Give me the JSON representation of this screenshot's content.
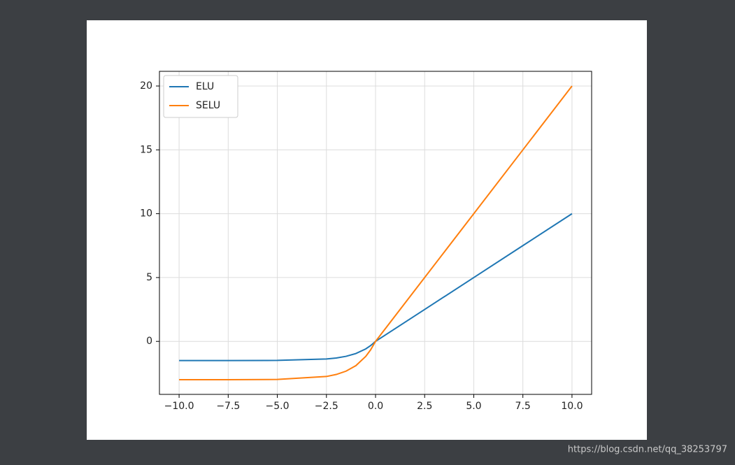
{
  "chart_data": {
    "type": "line",
    "x": [
      -10,
      -7.5,
      -5,
      -2.5,
      -2,
      -1.5,
      -1,
      -0.5,
      -0.25,
      0,
      2.5,
      5,
      7.5,
      10
    ],
    "series": [
      {
        "name": "ELU",
        "color": "#1f77b4",
        "values": [
          -1.5,
          -1.5,
          -1.49,
          -1.38,
          -1.3,
          -1.17,
          -0.95,
          -0.59,
          -0.33,
          0,
          2.5,
          5,
          7.5,
          10
        ]
      },
      {
        "name": "SELU",
        "color": "#ff7f0e",
        "values": [
          -3,
          -3,
          -2.98,
          -2.75,
          -2.59,
          -2.33,
          -1.9,
          -1.18,
          -0.66,
          0,
          5,
          10,
          15,
          20
        ]
      }
    ],
    "xlim": [
      -11,
      11
    ],
    "ylim": [
      -4.15,
      21.15
    ],
    "xticks": [
      {
        "value": -10,
        "label": "−10.0"
      },
      {
        "value": -7.5,
        "label": "−7.5"
      },
      {
        "value": -5,
        "label": "−5.0"
      },
      {
        "value": -2.5,
        "label": "−2.5"
      },
      {
        "value": 0,
        "label": "0.0"
      },
      2.5,
      {
        "value": 5,
        "label": "5.0"
      },
      7.5,
      {
        "value": 10,
        "label": "10.0"
      }
    ],
    "yticks": [
      0,
      5,
      10,
      15,
      20
    ],
    "grid": true,
    "legend": "upper-left"
  },
  "watermark": "https://blog.csdn.net/qq_38253797"
}
